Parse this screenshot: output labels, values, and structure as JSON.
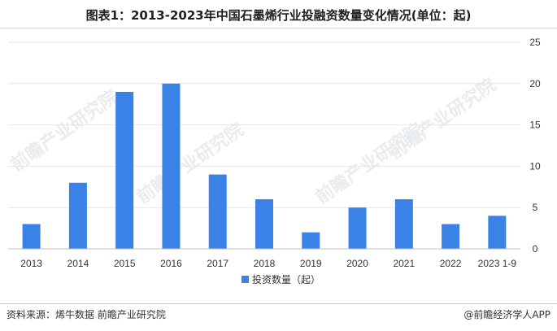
{
  "title": "图表1：2013-2023年中国石墨烯行业投融资数量变化情况(单位：起)",
  "watermark_text": "前瞻产业研究院",
  "footer": {
    "source": "资料来源：烯牛数据 前瞻产业研究院",
    "copyright": "@前瞻经济学人APP"
  },
  "colors": {
    "bar": "#3b82e6",
    "grid": "#e6e6e6",
    "axis": "#bfbfbf"
  },
  "chart_data": {
    "type": "bar",
    "title": "图表1：2013-2023年中国石墨烯行业投融资数量变化情况(单位：起)",
    "categories": [
      "2013",
      "2014",
      "2015",
      "2016",
      "2017",
      "2018",
      "2019",
      "2020",
      "2021",
      "2022",
      "2023 1-9"
    ],
    "series": [
      {
        "name": "投资数量（起）",
        "values": [
          3,
          8,
          19,
          20,
          9,
          6,
          2,
          5,
          6,
          3,
          4
        ]
      }
    ],
    "ylim": [
      0,
      25
    ],
    "yticks": [
      0,
      5,
      10,
      15,
      20,
      25
    ],
    "y_axis_side": "right",
    "xlabel": "",
    "ylabel": "",
    "grid": true,
    "legend_position": "bottom-center"
  }
}
